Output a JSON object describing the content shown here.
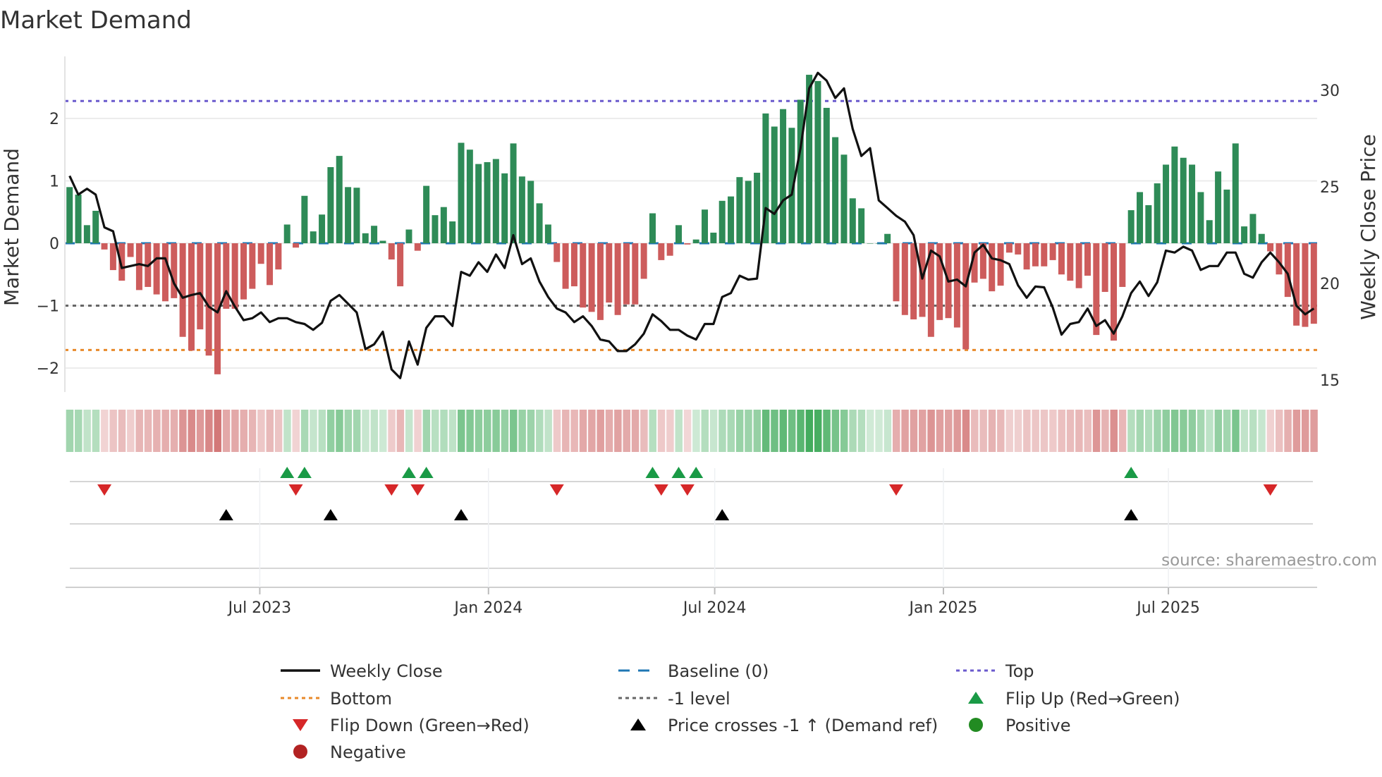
{
  "title": "Market Demand",
  "source": "source: sharemaestro.com",
  "colors": {
    "bar_positive": "#2e8b57",
    "bar_negative": "#cd5c5c",
    "price_line": "#111111",
    "baseline": "#1f77b4",
    "top": "#6a5acd",
    "bottom": "#e8892a",
    "minus_one": "#666666",
    "flip_up": "#1a9a46",
    "flip_down": "#d62728",
    "cross": "#000000",
    "positive": "#228b22",
    "negative": "#b22222"
  },
  "chart_data": {
    "type": "bar",
    "title": "Market Demand",
    "ylabel": "Market Demand",
    "y2label": "Weekly Close Price",
    "ylim": [
      -2.35,
      2.95
    ],
    "y2lim": [
      14.3,
      31.5
    ],
    "yticks": [
      {
        "v": 2,
        "label": "2"
      },
      {
        "v": 1,
        "label": "1"
      },
      {
        "v": 0,
        "label": "0"
      },
      {
        "v": -1,
        "label": "−1"
      },
      {
        "v": -2,
        "label": "−2"
      }
    ],
    "y2ticks": [
      {
        "v": 30,
        "label": "30"
      },
      {
        "v": 25,
        "label": "25"
      },
      {
        "v": 20,
        "label": "20"
      },
      {
        "v": 15,
        "label": "15"
      }
    ],
    "xticks": [
      {
        "date": "2023-07-01",
        "label": "Jul 2023"
      },
      {
        "date": "2024-01-01",
        "label": "Jan 2024"
      },
      {
        "date": "2024-07-01",
        "label": "Jul 2024"
      },
      {
        "date": "2025-01-01",
        "label": "Jan 2025"
      },
      {
        "date": "2025-07-01",
        "label": "Jul 2025"
      }
    ],
    "start_week": "2023-01-29",
    "frequency": "weekly",
    "reference_lines": {
      "top": 2.28,
      "bottom": -1.71,
      "minus_one": -1,
      "baseline": 0
    },
    "series": [
      {
        "name": "Market Demand",
        "kind": "bar",
        "values": [
          0.9,
          0.78,
          0.29,
          0.52,
          -0.1,
          -0.43,
          -0.6,
          -0.22,
          -0.75,
          -0.7,
          -0.82,
          -0.93,
          -0.88,
          -1.5,
          -1.72,
          -1.38,
          -1.8,
          -2.1,
          -1.05,
          -1.05,
          -0.9,
          -0.73,
          -0.33,
          -0.67,
          -0.42,
          0.3,
          -0.07,
          0.76,
          0.19,
          0.46,
          1.22,
          1.4,
          0.9,
          0.89,
          0.16,
          0.28,
          0.04,
          -0.26,
          -0.69,
          0.22,
          -0.12,
          0.92,
          0.45,
          0.58,
          0.35,
          1.61,
          1.5,
          1.27,
          1.3,
          1.35,
          1.12,
          1.6,
          1.07,
          1.0,
          0.64,
          0.3,
          -0.3,
          -0.73,
          -0.69,
          -1.03,
          -1.1,
          -1.23,
          -0.95,
          -1.15,
          -0.98,
          -0.98,
          -0.57,
          0.48,
          -0.27,
          -0.2,
          0.29,
          -0.02,
          0.06,
          0.54,
          0.17,
          0.68,
          0.75,
          1.06,
          1.0,
          1.13,
          2.08,
          1.87,
          2.15,
          1.85,
          2.3,
          2.7,
          2.6,
          2.17,
          1.7,
          1.42,
          0.72,
          0.56,
          0.0,
          0.0,
          0.15,
          -0.93,
          -1.15,
          -1.22,
          -1.18,
          -1.5,
          -1.23,
          -1.2,
          -1.35,
          -1.7,
          -0.63,
          -0.57,
          -0.77,
          -0.68,
          -0.15,
          -0.18,
          -0.42,
          -0.37,
          -0.37,
          -0.27,
          -0.5,
          -0.6,
          -0.72,
          -0.52,
          -1.47,
          -0.78,
          -1.56,
          -0.7,
          0.53,
          0.82,
          0.61,
          0.96,
          1.26,
          1.55,
          1.37,
          1.26,
          0.82,
          0.37,
          1.15,
          0.86,
          1.6,
          0.27,
          0.47,
          0.15,
          -0.13,
          -0.5,
          -0.86,
          -1.32,
          -1.34,
          -1.29
        ]
      },
      {
        "name": "Weekly Close",
        "kind": "line",
        "axis": "right",
        "values": [
          25.57,
          24.6,
          24.9,
          24.6,
          22.9,
          22.7,
          20.8,
          20.9,
          21.0,
          20.9,
          21.3,
          21.3,
          20.0,
          19.26,
          19.4,
          19.5,
          18.8,
          18.5,
          19.6,
          18.8,
          18.1,
          18.2,
          18.5,
          18.0,
          18.2,
          18.2,
          18.0,
          17.9,
          17.6,
          17.96,
          19.1,
          19.4,
          18.95,
          18.5,
          16.6,
          16.85,
          17.5,
          15.55,
          15.1,
          17.0,
          15.8,
          17.7,
          18.3,
          18.3,
          17.8,
          20.6,
          20.4,
          21.1,
          20.6,
          21.5,
          20.8,
          22.5,
          21.0,
          21.3,
          20.1,
          19.3,
          18.7,
          18.5,
          18.0,
          18.3,
          17.8,
          17.1,
          17.0,
          16.5,
          16.5,
          16.85,
          17.4,
          18.4,
          18.05,
          17.6,
          17.6,
          17.3,
          17.1,
          17.9,
          17.9,
          19.3,
          19.5,
          20.4,
          20.2,
          20.25,
          23.9,
          23.6,
          24.3,
          24.6,
          27.0,
          30.1,
          30.9,
          30.5,
          29.6,
          30.1,
          28.0,
          26.6,
          27.0,
          24.3,
          23.9,
          23.5,
          23.2,
          22.5,
          20.25,
          21.7,
          21.4,
          20.1,
          20.2,
          19.85,
          21.6,
          22.0,
          21.3,
          21.2,
          21.0,
          19.9,
          19.26,
          19.84,
          19.8,
          18.75,
          17.35,
          17.9,
          18.0,
          18.7,
          17.8,
          18.1,
          17.4,
          18.3,
          19.5,
          20.1,
          19.35,
          20.06,
          21.7,
          21.6,
          21.9,
          21.7,
          20.7,
          20.9,
          20.9,
          21.6,
          21.6,
          20.5,
          20.3,
          21.1,
          21.6,
          21.1,
          20.5,
          18.85,
          18.4,
          18.7
        ]
      }
    ],
    "events": {
      "flip_up_weeks": [
        25,
        27,
        39,
        41,
        67,
        70,
        72,
        122
      ],
      "flip_down_weeks": [
        4,
        26,
        37,
        40,
        56,
        68,
        71,
        95,
        138
      ],
      "price_cross_weeks": [
        18,
        30,
        45,
        75,
        122
      ]
    },
    "legend": {
      "placement": "bottom",
      "items": [
        {
          "label": "Weekly Close",
          "kind": "line"
        },
        {
          "label": "Baseline (0)",
          "kind": "baseline"
        },
        {
          "label": "Top",
          "kind": "top"
        },
        {
          "label": "Bottom",
          "kind": "bottom"
        },
        {
          "label": "-1 level",
          "kind": "minus_one"
        },
        {
          "label": "Flip Up (Red→Green)",
          "kind": "flip_up"
        },
        {
          "label": "Flip Down (Green→Red)",
          "kind": "flip_down"
        },
        {
          "label": "Price crosses -1 ↑ (Demand ref)",
          "kind": "cross"
        },
        {
          "label": "Positive",
          "kind": "positive"
        },
        {
          "label": "Negative",
          "kind": "negative"
        }
      ]
    }
  }
}
